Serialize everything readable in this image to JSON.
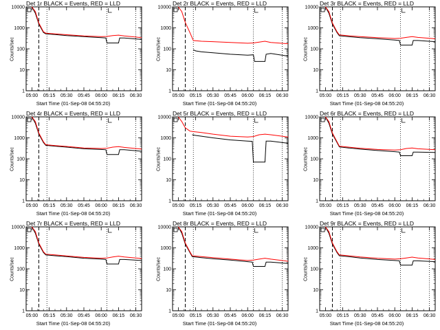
{
  "chart_data": [
    {
      "type": "line",
      "title_det": "Det 1r",
      "title_rest": "BLACK = Events, RED = LLD",
      "ylabel": "Counts/sec",
      "xlabel": "Start Time (01-Sep-08 04:55:20)",
      "x_ticks": [
        "05:00",
        "05:15",
        "05:30",
        "05:45",
        "06:00",
        "06:15",
        "06:30"
      ],
      "y_ticks": [
        "1",
        "10",
        "100",
        "1000",
        "10000"
      ],
      "y_scale": "log",
      "ylim": [
        1,
        10000
      ],
      "series": [
        {
          "color": "#000000",
          "x": [
            0,
            3,
            6,
            10,
            12,
            20,
            30,
            45,
            60,
            64,
            65,
            75,
            76,
            80,
            95
          ],
          "y": [
            10000,
            5000,
            1500,
            600,
            520,
            480,
            430,
            380,
            340,
            330,
            190,
            190,
            330,
            330,
            280
          ]
        },
        {
          "color": "#ff0000",
          "x": [
            0,
            3,
            6,
            10,
            12,
            20,
            30,
            45,
            60,
            65,
            70,
            75,
            80,
            95
          ],
          "y": [
            12000,
            6000,
            1700,
            650,
            560,
            520,
            470,
            410,
            380,
            390,
            430,
            450,
            410,
            340
          ]
        }
      ]
    },
    {
      "type": "line",
      "title_det": "Det 2r",
      "title_rest": "BLACK = Events, RED = LLD",
      "ylabel": "Counts/sec",
      "xlabel": "Start Time (01-Sep-08 04:55:20)",
      "x_ticks": [
        "05:00",
        "05:15",
        "05:30",
        "05:45",
        "06:00",
        "06:15",
        "06:30"
      ],
      "y_ticks": [
        "1",
        "10",
        "100",
        "1000",
        "10000"
      ],
      "y_scale": "log",
      "ylim": [
        1,
        10000
      ],
      "series": [
        {
          "color": "#000000",
          "x": [
            13,
            15,
            20,
            30,
            45,
            60,
            65,
            66,
            75,
            76,
            80,
            95
          ],
          "y": [
            90,
            80,
            72,
            65,
            55,
            50,
            52,
            25,
            25,
            55,
            60,
            45
          ]
        },
        {
          "color": "#ff0000",
          "x": [
            0,
            3,
            6,
            10,
            13,
            20,
            30,
            45,
            60,
            65,
            70,
            75,
            80,
            95
          ],
          "y": [
            12000,
            6000,
            1800,
            600,
            250,
            230,
            220,
            200,
            185,
            190,
            210,
            230,
            200,
            175
          ]
        }
      ]
    },
    {
      "type": "line",
      "title_det": "Det 3r",
      "title_rest": "BLACK = Events, RED = LLD",
      "ylabel": "Counts/sec",
      "xlabel": "Start Time (01-Sep-08 04:55:20)",
      "x_ticks": [
        "05:00",
        "05:15",
        "05:30",
        "05:45",
        "06:00",
        "06:15",
        "06:30"
      ],
      "y_ticks": [
        "1",
        "10",
        "100",
        "1000",
        "10000"
      ],
      "y_scale": "log",
      "ylim": [
        1,
        10000
      ],
      "series": [
        {
          "color": "#000000",
          "x": [
            0,
            3,
            6,
            10,
            12,
            20,
            30,
            45,
            60,
            64,
            65,
            75,
            76,
            80,
            95
          ],
          "y": [
            10000,
            5000,
            1500,
            600,
            420,
            380,
            340,
            300,
            260,
            250,
            150,
            150,
            250,
            250,
            220
          ]
        },
        {
          "color": "#ff0000",
          "x": [
            0,
            3,
            6,
            10,
            12,
            20,
            30,
            45,
            60,
            65,
            70,
            75,
            80,
            95
          ],
          "y": [
            12000,
            6000,
            1700,
            650,
            460,
            420,
            380,
            340,
            310,
            320,
            350,
            380,
            350,
            300
          ]
        }
      ]
    },
    {
      "type": "line",
      "title_det": "Det 4r",
      "title_rest": "BLACK = Events, RED = LLD",
      "ylabel": "Counts/sec",
      "xlabel": "Start Time (01-Sep-08 04:55:20)",
      "x_ticks": [
        "05:00",
        "05:15",
        "05:30",
        "05:45",
        "06:00",
        "06:15",
        "06:30"
      ],
      "y_ticks": [
        "1",
        "10",
        "100",
        "1000",
        "10000"
      ],
      "y_scale": "log",
      "ylim": [
        1,
        10000
      ],
      "series": [
        {
          "color": "#000000",
          "x": [
            0,
            3,
            6,
            10,
            12,
            20,
            30,
            45,
            60,
            64,
            65,
            75,
            76,
            80,
            95
          ],
          "y": [
            10000,
            5000,
            1500,
            600,
            440,
            400,
            360,
            300,
            280,
            270,
            160,
            160,
            270,
            270,
            230
          ]
        },
        {
          "color": "#ff0000",
          "x": [
            0,
            3,
            6,
            10,
            12,
            20,
            30,
            45,
            60,
            65,
            70,
            75,
            80,
            95
          ],
          "y": [
            12000,
            6000,
            1700,
            650,
            470,
            430,
            390,
            330,
            310,
            320,
            360,
            380,
            350,
            290
          ]
        }
      ]
    },
    {
      "type": "line",
      "title_det": "Det 5r",
      "title_rest": "BLACK = Events, RED = LLD",
      "ylabel": "Counts/sec",
      "xlabel": "Start Time (01-Sep-08 04:55:20)",
      "x_ticks": [
        "05:00",
        "05:15",
        "05:30",
        "05:45",
        "06:00",
        "06:15",
        "06:30"
      ],
      "y_ticks": [
        "1",
        "10",
        "100",
        "1000",
        "10000"
      ],
      "y_scale": "log",
      "ylim": [
        1,
        10000
      ],
      "series": [
        {
          "color": "#000000",
          "x": [
            12,
            15,
            20,
            30,
            45,
            60,
            64,
            65,
            75,
            76,
            80,
            95
          ],
          "y": [
            1400,
            1300,
            1200,
            1000,
            800,
            700,
            680,
            70,
            70,
            700,
            700,
            550
          ]
        },
        {
          "color": "#ff0000",
          "x": [
            0,
            3,
            6,
            10,
            12,
            20,
            30,
            45,
            60,
            65,
            70,
            75,
            80,
            95
          ],
          "y": [
            12000,
            6000,
            3000,
            2100,
            2000,
            1800,
            1500,
            1200,
            1100,
            1150,
            1400,
            1500,
            1400,
            1100
          ]
        }
      ]
    },
    {
      "type": "line",
      "title_det": "Det 6r",
      "title_rest": "BLACK = Events, RED = LLD",
      "ylabel": "Counts/sec",
      "xlabel": "Start Time (01-Sep-08 04:55:20)",
      "x_ticks": [
        "05:00",
        "05:15",
        "05:30",
        "05:45",
        "06:00",
        "06:15",
        "06:30"
      ],
      "y_ticks": [
        "1",
        "10",
        "100",
        "1000",
        "10000"
      ],
      "y_scale": "log",
      "ylim": [
        1,
        10000
      ],
      "series": [
        {
          "color": "#000000",
          "x": [
            0,
            3,
            6,
            10,
            12,
            20,
            30,
            45,
            60,
            64,
            65,
            75,
            76,
            80,
            95
          ],
          "y": [
            10000,
            5000,
            1500,
            600,
            370,
            330,
            290,
            250,
            220,
            210,
            140,
            140,
            210,
            210,
            200
          ]
        },
        {
          "color": "#ff0000",
          "x": [
            0,
            3,
            6,
            10,
            12,
            20,
            30,
            45,
            60,
            65,
            70,
            75,
            80,
            95
          ],
          "y": [
            12000,
            6000,
            1700,
            650,
            400,
            360,
            320,
            280,
            260,
            270,
            310,
            330,
            300,
            270
          ]
        }
      ]
    },
    {
      "type": "line",
      "title_det": "Det 7r",
      "title_rest": "BLACK = Events, RED = LLD",
      "ylabel": "Counts/sec",
      "xlabel": "Start Time (01-Sep-08 04:55:20)",
      "x_ticks": [
        "05:00",
        "05:15",
        "05:30",
        "05:45",
        "06:00",
        "06:15",
        "06:30"
      ],
      "y_ticks": [
        "1",
        "10",
        "100",
        "1000",
        "10000"
      ],
      "y_scale": "log",
      "ylim": [
        1,
        10000
      ],
      "series": [
        {
          "color": "#000000",
          "x": [
            0,
            3,
            6,
            10,
            12,
            20,
            30,
            45,
            60,
            64,
            65,
            75,
            76,
            80,
            95
          ],
          "y": [
            10000,
            5000,
            1500,
            600,
            460,
            420,
            380,
            320,
            290,
            280,
            170,
            170,
            280,
            280,
            250
          ]
        },
        {
          "color": "#ff0000",
          "x": [
            0,
            3,
            6,
            10,
            12,
            20,
            30,
            45,
            60,
            65,
            70,
            75,
            80,
            95
          ],
          "y": [
            12000,
            6000,
            1700,
            650,
            500,
            460,
            410,
            350,
            320,
            330,
            370,
            400,
            370,
            310
          ]
        }
      ]
    },
    {
      "type": "line",
      "title_det": "Det 8r",
      "title_rest": "BLACK = Events, RED = LLD",
      "ylabel": "Counts/sec",
      "xlabel": "Start Time (01-Sep-08 04:55:20)",
      "x_ticks": [
        "05:00",
        "05:15",
        "05:30",
        "05:45",
        "06:00",
        "06:15",
        "06:30"
      ],
      "y_ticks": [
        "1",
        "10",
        "100",
        "1000",
        "10000"
      ],
      "y_scale": "log",
      "ylim": [
        1,
        10000
      ],
      "series": [
        {
          "color": "#000000",
          "x": [
            0,
            3,
            6,
            10,
            12,
            20,
            30,
            45,
            60,
            64,
            65,
            75,
            76,
            80,
            95
          ],
          "y": [
            10000,
            5000,
            1500,
            600,
            380,
            340,
            300,
            260,
            220,
            210,
            130,
            130,
            210,
            210,
            180
          ]
        },
        {
          "color": "#ff0000",
          "x": [
            0,
            3,
            6,
            10,
            12,
            20,
            30,
            45,
            60,
            65,
            70,
            75,
            80,
            95
          ],
          "y": [
            12000,
            6000,
            1700,
            650,
            420,
            380,
            340,
            290,
            250,
            260,
            290,
            320,
            290,
            230
          ]
        }
      ]
    },
    {
      "type": "line",
      "title_det": "Det 9r",
      "title_rest": "BLACK = Events, RED = LLD",
      "ylabel": "Counts/sec",
      "xlabel": "Start Time (01-Sep-08 04:55:20)",
      "x_ticks": [
        "05:00",
        "05:15",
        "05:30",
        "05:45",
        "06:00",
        "06:15",
        "06:30"
      ],
      "y_ticks": [
        "1",
        "10",
        "100",
        "1000",
        "10000"
      ],
      "y_scale": "log",
      "ylim": [
        1,
        10000
      ],
      "series": [
        {
          "color": "#000000",
          "x": [
            0,
            3,
            6,
            10,
            12,
            20,
            30,
            45,
            60,
            64,
            65,
            75,
            76,
            80,
            95
          ],
          "y": [
            10000,
            5000,
            1500,
            600,
            420,
            380,
            330,
            280,
            250,
            240,
            150,
            150,
            240,
            240,
            220
          ]
        },
        {
          "color": "#ff0000",
          "x": [
            0,
            3,
            6,
            10,
            12,
            20,
            30,
            45,
            60,
            65,
            70,
            75,
            80,
            95
          ],
          "y": [
            12000,
            6000,
            1700,
            650,
            460,
            420,
            370,
            320,
            290,
            300,
            330,
            360,
            330,
            280
          ]
        }
      ]
    }
  ]
}
